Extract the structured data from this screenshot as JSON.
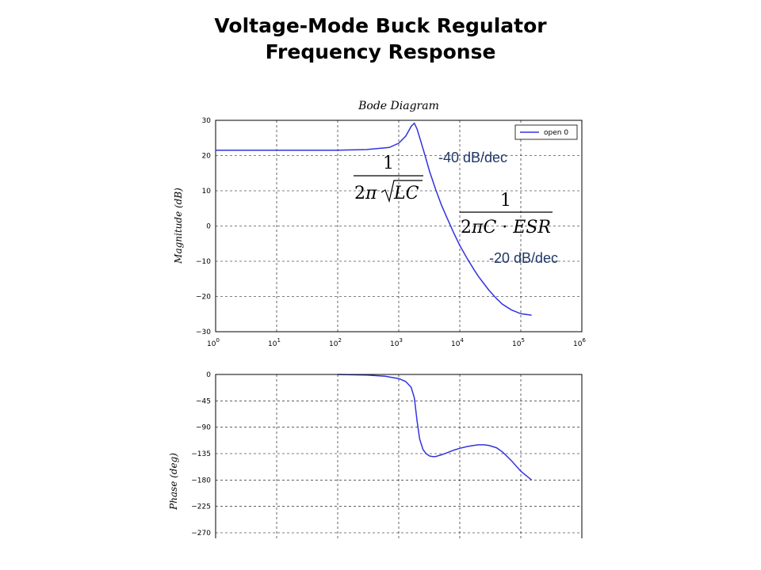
{
  "slide": {
    "title_line1": "Voltage-Mode Buck Regulator",
    "title_line2": "Frequency Response"
  },
  "colors": {
    "curve": "#3333dd",
    "annotation": "#1f3864"
  },
  "chart_data": [
    {
      "type": "line",
      "title": "Bode Diagram",
      "ylabel": "Magnitude (dB)",
      "xscale": "log",
      "xlim": [
        1,
        1000000
      ],
      "ylim": [
        -30,
        30
      ],
      "grid": true,
      "grid_style": "dashed",
      "x_tick_labels": [
        "10",
        "10",
        "10",
        "10",
        "10",
        "10",
        "10"
      ],
      "x_tick_exponents": [
        "0",
        "1",
        "2",
        "3",
        "4",
        "5",
        "6"
      ],
      "y_tick_labels": [
        "30",
        "20",
        "10",
        "0",
        "−10",
        "−20",
        "−30"
      ],
      "legend": {
        "position": "top-right",
        "entries": [
          "open 0"
        ]
      },
      "series": [
        {
          "name": "open 0",
          "x": [
            1,
            10,
            100,
            300,
            700,
            1000,
            1300,
            1600,
            1800,
            2000,
            2300,
            2700,
            3200,
            4000,
            5000,
            6300,
            8000,
            10000,
            13000,
            17000,
            20000,
            25000,
            30000,
            40000,
            50000,
            70000,
            100000,
            150000
          ],
          "y": [
            21.5,
            21.5,
            21.5,
            21.7,
            22.3,
            23.5,
            25.5,
            28.3,
            29.2,
            27.5,
            24.0,
            20.0,
            15.5,
            10.5,
            6.0,
            2.0,
            -2.0,
            -5.5,
            -9.0,
            -12.3,
            -14.2,
            -16.4,
            -18.2,
            -20.6,
            -22.2,
            -23.8,
            -24.9,
            -25.3
          ]
        }
      ],
      "annotations": {
        "slope1": "-40 dB/dec",
        "slope2": "-20 dB/dec",
        "formula1": {
          "numerator": "1",
          "prefix": "2",
          "pi": "π",
          "radicand": "LC"
        },
        "formula2": {
          "numerator": "1",
          "prefix": "2",
          "pi": "π",
          "term1": "C",
          "dot": " · ",
          "term2": "ESR"
        }
      }
    },
    {
      "type": "line",
      "ylabel": "Phase (deg)",
      "xscale": "log",
      "xlim": [
        1,
        1000000
      ],
      "ylim": [
        -270,
        0
      ],
      "grid": true,
      "grid_style": "dashed",
      "y_tick_labels": [
        "0",
        "−45",
        "−90",
        "−135",
        "−180",
        "−225",
        "−270"
      ],
      "series": [
        {
          "x": [
            100,
            300,
            600,
            1000,
            1300,
            1600,
            1800,
            2000,
            2200,
            2500,
            2800,
            3200,
            3600,
            4000,
            5000,
            6000,
            8000,
            10000,
            13000,
            17000,
            20000,
            25000,
            30000,
            40000,
            50000,
            70000,
            100000,
            150000
          ],
          "y": [
            0,
            -1,
            -3,
            -7,
            -12,
            -22,
            -40,
            -80,
            -110,
            -128,
            -135,
            -139,
            -140,
            -140,
            -137,
            -134,
            -129,
            -126,
            -123,
            -121,
            -120,
            -120,
            -121,
            -125,
            -132,
            -147,
            -165,
            -180
          ]
        }
      ]
    }
  ]
}
